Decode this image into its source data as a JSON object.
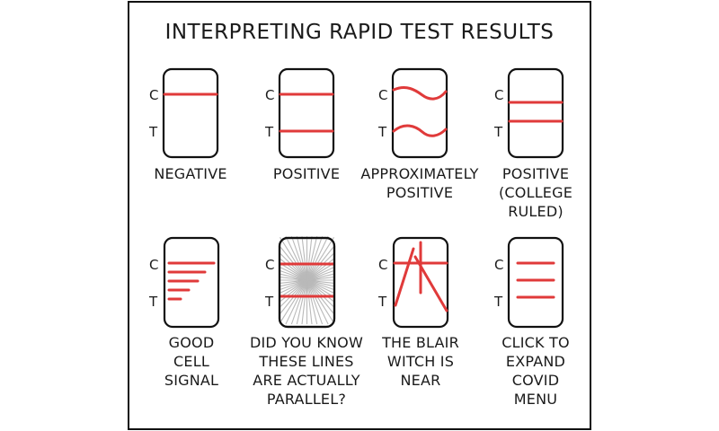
{
  "title": "INTERPRETING RAPID TEST RESULTS",
  "colors": {
    "line_red": "#e03a3a",
    "ink": "#111111",
    "frame": "#111111"
  },
  "marker_c": "C",
  "marker_t": "T",
  "panels": [
    {
      "label_lines": [
        "NEGATIVE"
      ]
    },
    {
      "label_lines": [
        "POSITIVE"
      ]
    },
    {
      "label_lines": [
        "APPROXIMATELY",
        "POSITIVE"
      ]
    },
    {
      "label_lines": [
        "POSITIVE",
        "(COLLEGE",
        "RULED)"
      ]
    },
    {
      "label_lines": [
        "GOOD",
        "CELL",
        "SIGNAL"
      ]
    },
    {
      "label_lines": [
        "DID YOU KNOW",
        "THESE LINES",
        "ARE ACTUALLY",
        "PARALLEL?"
      ]
    },
    {
      "label_lines": [
        "THE BLAIR",
        "WITCH IS",
        "NEAR"
      ]
    },
    {
      "label_lines": [
        "CLICK TO",
        "EXPAND",
        "COVID",
        "MENU"
      ]
    }
  ]
}
